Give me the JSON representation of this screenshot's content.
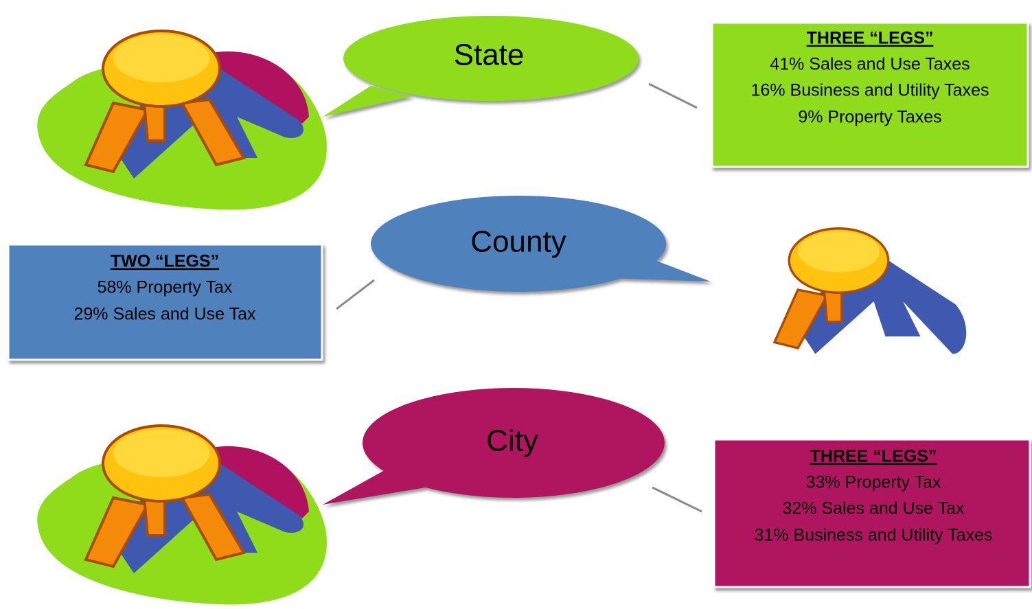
{
  "sections": [
    {
      "bubble": "State",
      "box": {
        "heading": "THREE “LEGS”",
        "lines": [
          "41% Sales and Use Taxes",
          "16% Business and Utility Taxes",
          "9% Property Taxes"
        ]
      }
    },
    {
      "bubble": "County",
      "box": {
        "heading": "TWO “LEGS”",
        "lines": [
          "58% Property Tax",
          "29% Sales and Use Tax"
        ]
      }
    },
    {
      "bubble": "City",
      "box": {
        "heading": "THREE “LEGS”",
        "lines": [
          "33% Property Tax",
          "32% Sales and Use Tax",
          "31% Business and Utility Taxes"
        ]
      }
    }
  ]
}
